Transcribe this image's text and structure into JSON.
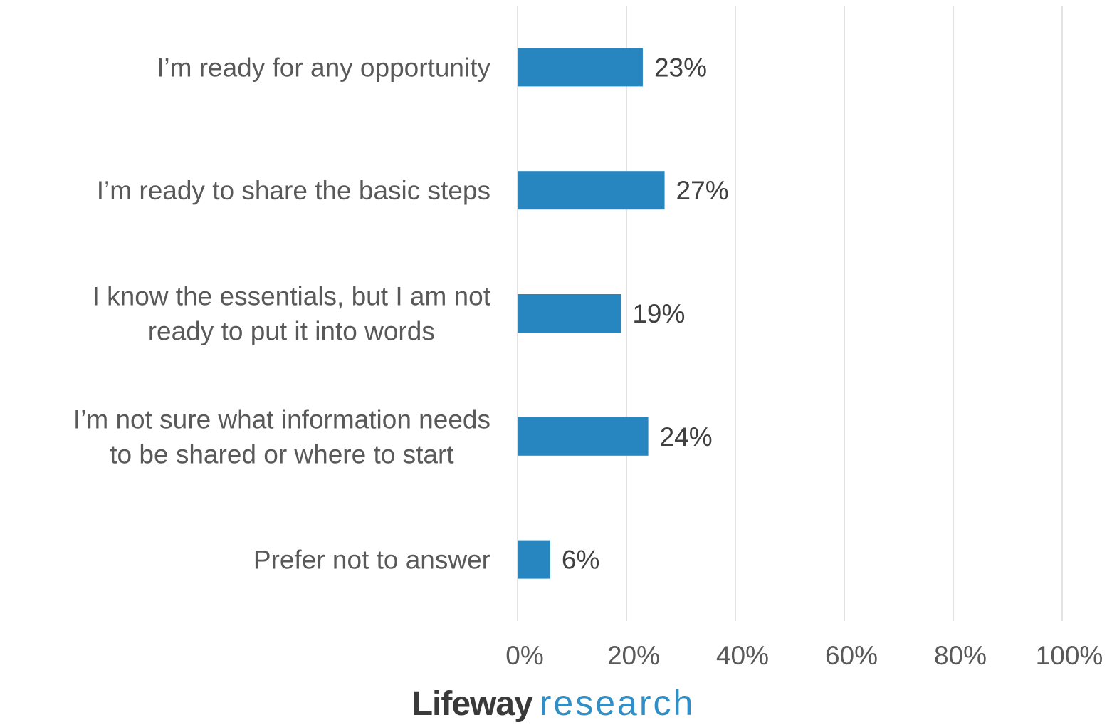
{
  "chart_data": {
    "type": "bar",
    "orientation": "horizontal",
    "categories": [
      [
        "I’m ready for any opportunity"
      ],
      [
        "I’m ready to share the basic steps"
      ],
      [
        "I know the essentials, but I am not",
        "ready to put it into words"
      ],
      [
        "I’m not sure what information needs",
        "to be shared or where to start"
      ],
      [
        "Prefer not to answer"
      ]
    ],
    "values": [
      23,
      27,
      19,
      24,
      6
    ],
    "value_labels": [
      "23%",
      "27%",
      "19%",
      "24%",
      "6%"
    ],
    "xlim": [
      0,
      100
    ],
    "x_ticks": [
      "0%",
      "20%",
      "40%",
      "60%",
      "80%",
      "100%"
    ],
    "grid": true,
    "bar_color": "#2785c0",
    "title": "",
    "xlabel": "",
    "ylabel": ""
  },
  "logo": {
    "brand": "Lifeway",
    "sub": "research",
    "brand_color": "#3a3a3a",
    "sub_color": "#2f8fc6"
  }
}
